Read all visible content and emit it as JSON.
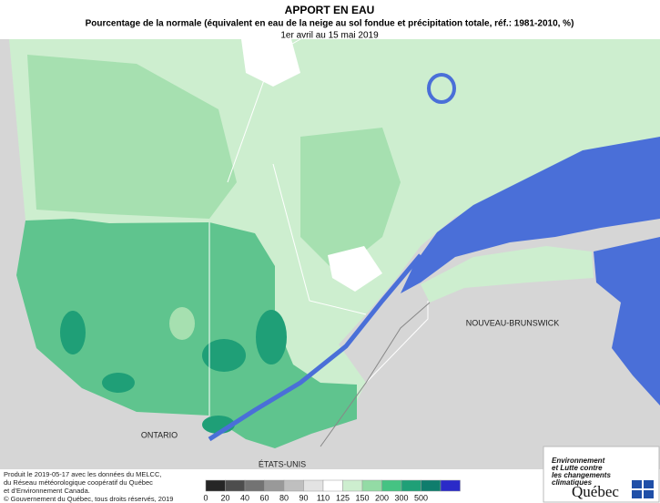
{
  "title": "APPORT EN EAU",
  "subtitle": "Pourcentage de la normale (équivalent en eau de la neige au sol fondue et précipitation totale, réf.: 1981-2010, %)",
  "period": "1er avril au 15 mai 2019",
  "map": {
    "labels": [
      "ONTARIO",
      "ÉTATS-UNIS",
      "NOUVEAU-BRUNSWICK"
    ]
  },
  "legend": {
    "ticks": [
      0,
      20,
      40,
      60,
      80,
      90,
      110,
      125,
      150,
      200,
      300,
      500
    ],
    "colors": [
      "#262626",
      "#4d4d4d",
      "#737373",
      "#999999",
      "#bfbfbf",
      "#e3e3e3",
      "#ffffff",
      "#cdeecf",
      "#93dba5",
      "#45c383",
      "#1fa077",
      "#0f7d6d",
      "#2a2ac8"
    ]
  },
  "credits": [
    "Produit le 2019-05-17 avec les données du MELCC,",
    "du Réseau météorologique coopératif du Québec",
    "et d'Environnement Canada.",
    "© Gouvernement du Québec, tous droits réservés, 2019"
  ],
  "logo": {
    "ministry": [
      "Environnement",
      "et Lutte contre",
      "les changements",
      "climatiques"
    ],
    "name": "Québec"
  }
}
